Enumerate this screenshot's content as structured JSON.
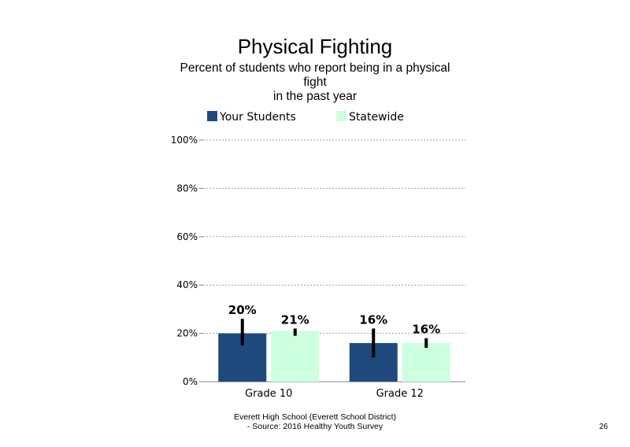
{
  "chart_data": {
    "type": "bar",
    "title": "Physical Fighting",
    "subtitle_lines": [
      "Percent of students  who report being in a physical",
      "fight",
      "in the past year"
    ],
    "categories": [
      "Grade 10",
      "Grade 12"
    ],
    "series": [
      {
        "name": "Your Students",
        "color": "#1f497d",
        "values": [
          20,
          16
        ],
        "labels": [
          "20%",
          "16%"
        ],
        "error_low": [
          15,
          10
        ],
        "error_high": [
          26,
          22
        ]
      },
      {
        "name": "Statewide",
        "color": "#ccffdd",
        "values": [
          21,
          16
        ],
        "labels": [
          "21%",
          "16%"
        ],
        "error_low": [
          19,
          14
        ],
        "error_high": [
          22,
          18
        ]
      }
    ],
    "y_ticks": [
      0,
      20,
      40,
      60,
      80,
      100
    ],
    "y_tick_labels": [
      "0%",
      "20%",
      "40%",
      "60%",
      "80%",
      "100%"
    ],
    "ylim": [
      0,
      100
    ],
    "xlabel": "",
    "ylabel": "",
    "grid": true,
    "legend_position": "top"
  },
  "footer": {
    "line1": "Everett High  School (Everett School District)",
    "line2": "- Source: 2016 Healthy  Youth Survey"
  },
  "page_number": "26"
}
